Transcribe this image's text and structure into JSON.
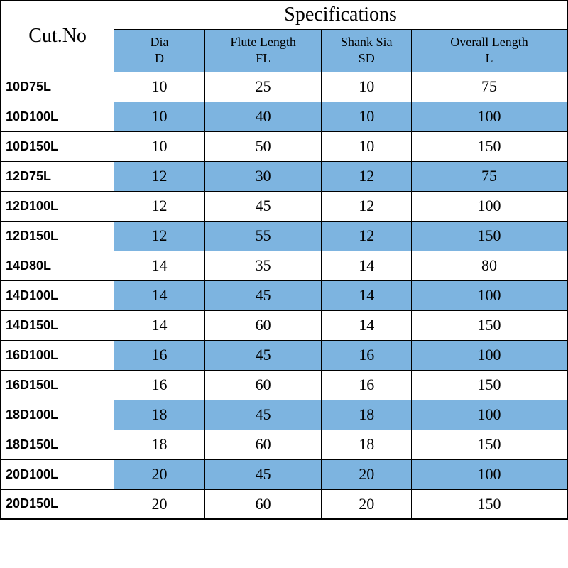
{
  "header": {
    "cut_no": "Cut.No",
    "specifications": "Specifications"
  },
  "columns": [
    {
      "label": "Dia",
      "sub": "D"
    },
    {
      "label": "Flute Length",
      "sub": "FL"
    },
    {
      "label": "Shank Sia",
      "sub": "SD"
    },
    {
      "label": "Overall Length",
      "sub": "L"
    }
  ],
  "rows": [
    {
      "cut": "10D75L",
      "d": 10,
      "fl": 25,
      "sd": 10,
      "l": 75,
      "shaded": false
    },
    {
      "cut": "10D100L",
      "d": 10,
      "fl": 40,
      "sd": 10,
      "l": 100,
      "shaded": true
    },
    {
      "cut": "10D150L",
      "d": 10,
      "fl": 50,
      "sd": 10,
      "l": 150,
      "shaded": false
    },
    {
      "cut": "12D75L",
      "d": 12,
      "fl": 30,
      "sd": 12,
      "l": 75,
      "shaded": true
    },
    {
      "cut": "12D100L",
      "d": 12,
      "fl": 45,
      "sd": 12,
      "l": 100,
      "shaded": false
    },
    {
      "cut": "12D150L",
      "d": 12,
      "fl": 55,
      "sd": 12,
      "l": 150,
      "shaded": true
    },
    {
      "cut": "14D80L",
      "d": 14,
      "fl": 35,
      "sd": 14,
      "l": 80,
      "shaded": false
    },
    {
      "cut": "14D100L",
      "d": 14,
      "fl": 45,
      "sd": 14,
      "l": 100,
      "shaded": true
    },
    {
      "cut": "14D150L",
      "d": 14,
      "fl": 60,
      "sd": 14,
      "l": 150,
      "shaded": false
    },
    {
      "cut": "16D100L",
      "d": 16,
      "fl": 45,
      "sd": 16,
      "l": 100,
      "shaded": true
    },
    {
      "cut": "16D150L",
      "d": 16,
      "fl": 60,
      "sd": 16,
      "l": 150,
      "shaded": false
    },
    {
      "cut": "18D100L",
      "d": 18,
      "fl": 45,
      "sd": 18,
      "l": 100,
      "shaded": true
    },
    {
      "cut": "18D150L",
      "d": 18,
      "fl": 60,
      "sd": 18,
      "l": 150,
      "shaded": false
    },
    {
      "cut": "20D100L",
      "d": 20,
      "fl": 45,
      "sd": 20,
      "l": 100,
      "shaded": true
    },
    {
      "cut": "20D150L",
      "d": 20,
      "fl": 60,
      "sd": 20,
      "l": 150,
      "shaded": false
    }
  ],
  "style": {
    "shaded_bg": "#7db4e0",
    "border_color": "#000000",
    "header_fontsize": 28,
    "colheader_fontsize": 18,
    "body_fontsize": 22,
    "cut_fontsize": 18
  }
}
